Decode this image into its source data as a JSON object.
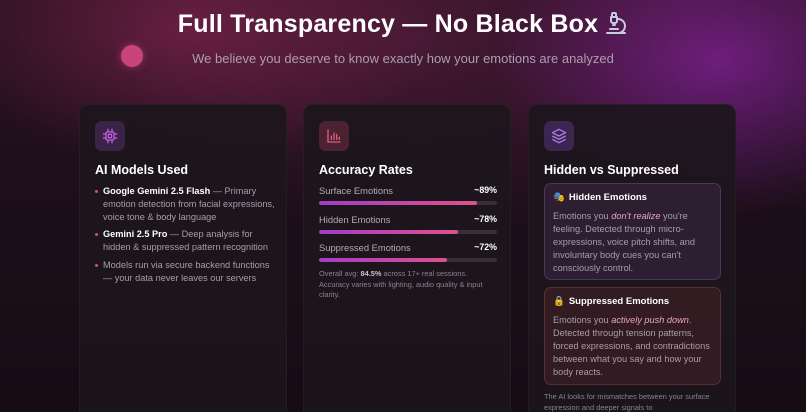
{
  "header": {
    "title": "Full Transparency — No Black Box",
    "subtitle": "We believe you deserve to know exactly how your emotions are analyzed"
  },
  "cards": {
    "models": {
      "icon": "chip-icon",
      "title": "AI Models Used",
      "items": [
        {
          "strong": "Google Gemini 2.5 Flash",
          "text": " — Primary emotion detection from facial expressions, voice tone & body language"
        },
        {
          "strong": "Gemini 2.5 Pro",
          "text": " — Deep analysis for hidden & suppressed pattern recognition"
        },
        {
          "strong": "",
          "text": "Models run via secure backend functions — your data never leaves our servers"
        }
      ]
    },
    "accuracy": {
      "icon": "bar-chart-icon",
      "title": "Accuracy Rates",
      "metrics": [
        {
          "label": "Surface Emotions",
          "value": "~89%",
          "fraction": 0.89
        },
        {
          "label": "Hidden Emotions",
          "value": "~78%",
          "fraction": 0.78
        },
        {
          "label": "Suppressed Emotions",
          "value": "~72%",
          "fraction": 0.72
        }
      ],
      "note_prefix": "Overall avg: ",
      "note_strong": "84.5%",
      "note_suffix": " across 17+ real sessions. Accuracy varies with lighting, audio quality & input clarity."
    },
    "hidden": {
      "icon": "layers-icon",
      "title": "Hidden vs Suppressed",
      "hidden_box": {
        "emoji": "🎭",
        "title": "Hidden Emotions",
        "pre": "Emotions you ",
        "em": "don't realize",
        "post": " you're feeling. Detected through micro-expressions, voice pitch shifts, and involuntary body cues you can't consciously control."
      },
      "suppressed_box": {
        "emoji": "🔒",
        "title": "Suppressed Emotions",
        "pre": "Emotions you ",
        "em": "actively push down",
        "post": ". Detected through tension patterns, forced expressions, and contradictions between what you say and how your body reacts."
      },
      "tail": "The AI looks for mismatches between your surface expression and deeper signals to"
    }
  },
  "colors": {
    "accent_pink": "#e04a78",
    "accent_purple": "#a23cc8",
    "card_bg": "#1c161c"
  }
}
